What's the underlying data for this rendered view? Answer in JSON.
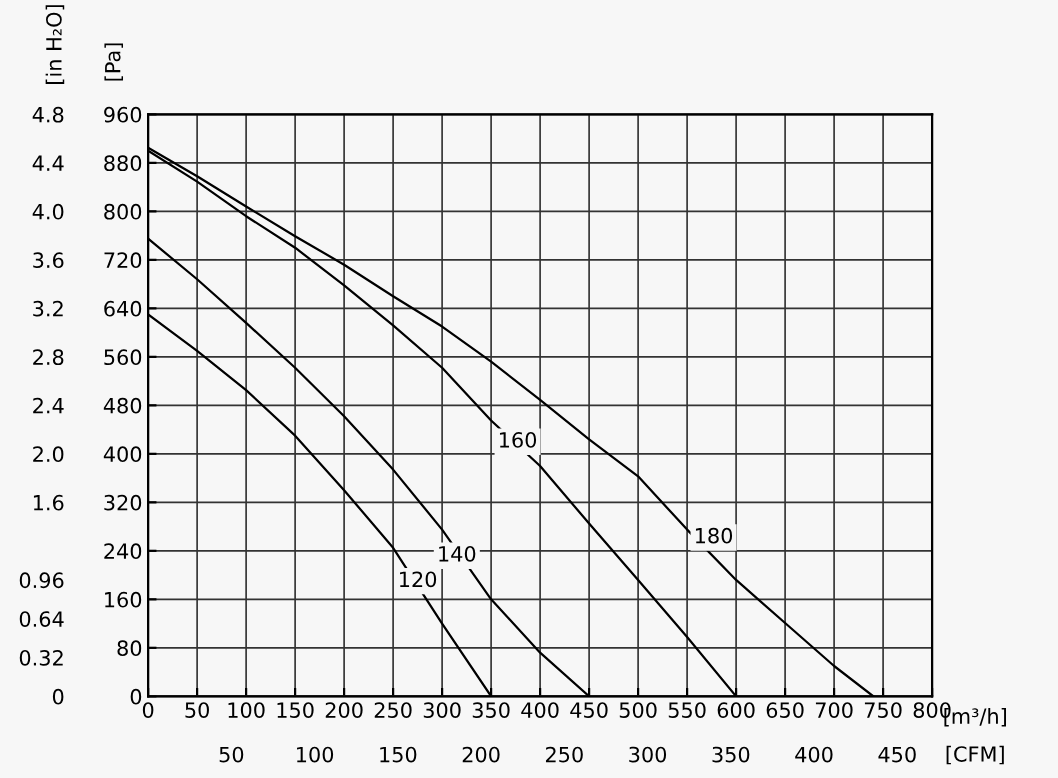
{
  "chart_data": {
    "type": "line",
    "xlabel": "[m³/h]",
    "ylabel": "[Pa]",
    "y2label": "[in H₂O]",
    "x2label": "[CFM]",
    "xlim": [
      0,
      800
    ],
    "xticks": [
      0,
      50,
      100,
      150,
      200,
      250,
      300,
      350,
      400,
      450,
      500,
      550,
      600,
      650,
      700,
      750,
      800
    ],
    "ylim": [
      0,
      960
    ],
    "yticks": [
      0,
      80,
      160,
      240,
      320,
      400,
      480,
      560,
      640,
      720,
      800,
      880,
      960
    ],
    "y2lim": [
      0,
      4.8
    ],
    "y2ticks": [
      0,
      0.32,
      0.64,
      0.96,
      1.6,
      {
        "value": 2.0,
        "label": "2.0"
      },
      2.4,
      2.8,
      3.2,
      3.6,
      {
        "value": 4.0,
        "label": "4.0"
      },
      4.4,
      4.8
    ],
    "x2lim": [
      0,
      470.9
    ],
    "x2ticks": [
      50,
      100,
      150,
      200,
      250,
      300,
      350,
      400,
      450
    ],
    "grid": true,
    "marker": "none",
    "line_style": "solid",
    "series": [
      {
        "color": "#000000",
        "x": [
          0,
          50,
          100,
          150,
          200,
          250,
          300,
          350
        ],
        "values": [
          630,
          570,
          505,
          430,
          340,
          245,
          120,
          0
        ]
      },
      {
        "color": "#000000",
        "x": [
          0,
          50,
          100,
          150,
          200,
          250,
          300,
          350,
          400,
          450
        ],
        "values": [
          755,
          688,
          616,
          542,
          462,
          374,
          275,
          160,
          72,
          0
        ]
      },
      {
        "color": "#000000",
        "x": [
          0,
          50,
          100,
          150,
          200,
          250,
          300,
          350,
          400,
          450,
          500,
          550,
          600
        ],
        "values": [
          900,
          849,
          792,
          740,
          678,
          612,
          542,
          455,
          380,
          285,
          192,
          98,
          0
        ]
      },
      {
        "color": "#000000",
        "x": [
          0,
          50,
          100,
          150,
          200,
          250,
          300,
          350,
          400,
          450,
          500,
          550,
          600,
          650,
          700,
          740
        ],
        "values": [
          905,
          858,
          808,
          759,
          712,
          660,
          610,
          552,
          489,
          424,
          363,
          275,
          192,
          121,
          50,
          0
        ]
      }
    ],
    "annotations": [
      {
        "text": "120",
        "x": 275,
        "y": 190
      },
      {
        "text": "140",
        "x": 315,
        "y": 232
      },
      {
        "text": "160",
        "x": 377,
        "y": 420
      },
      {
        "text": "180",
        "x": 577,
        "y": 262
      }
    ]
  }
}
